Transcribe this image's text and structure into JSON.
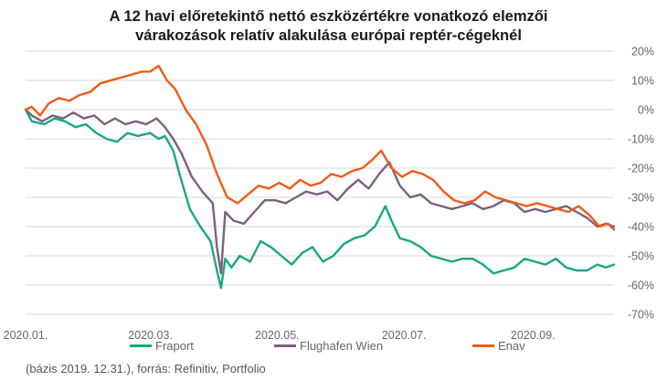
{
  "title_line1": "A 12 havi előretekintő nettó eszközértékre vonatkozó elemzői",
  "title_line2": "várakozások relatív alakulása európai reptér-cégeknél",
  "note": "(bázis 2019.  12.31.), forrás: Refinitiv, Portfolio",
  "colors": {
    "Fraport": "#1aa87e",
    "Flughafen Wien": "#7b617f",
    "Enav": "#ef5b17",
    "grid": "#d7d7d7"
  },
  "chart_data": {
    "type": "line",
    "title": "A 12 havi előretekintő nettó eszközértékre vonatkozó elemzői várakozások relatív alakulása európai reptér-cégeknél",
    "xlabel": "",
    "ylabel": "",
    "x_ticks": [
      "2020.01.",
      "2020.03.",
      "2020.05.",
      "2020.07.",
      "2020.09."
    ],
    "x_range": [
      "2020.01.01",
      "2020.10.10"
    ],
    "y_ticks": [
      "20%",
      "10%",
      "0%",
      "-10%",
      "-20%",
      "-30%",
      "-40%",
      "-50%",
      "-60%",
      "-70%"
    ],
    "ylim": [
      -70,
      20
    ],
    "y_axis_side": "right",
    "grid": true,
    "legend_position": "bottom",
    "series": [
      {
        "name": "Fraport",
        "color": "#1aa87e",
        "points": [
          [
            "2020.01.01",
            0
          ],
          [
            "2020.01.04",
            -4
          ],
          [
            "2020.01.10",
            -5
          ],
          [
            "2020.01.15",
            -3
          ],
          [
            "2020.01.20",
            -4
          ],
          [
            "2020.01.25",
            -6
          ],
          [
            "2020.01.30",
            -5
          ],
          [
            "2020.02.04",
            -8
          ],
          [
            "2020.02.09",
            -10
          ],
          [
            "2020.02.14",
            -11
          ],
          [
            "2020.02.19",
            -8
          ],
          [
            "2020.02.24",
            -9
          ],
          [
            "2020.03.01",
            -8
          ],
          [
            "2020.03.05",
            -10
          ],
          [
            "2020.03.08",
            -9
          ],
          [
            "2020.03.12",
            -14
          ],
          [
            "2020.03.15",
            -22
          ],
          [
            "2020.03.20",
            -34
          ],
          [
            "2020.03.25",
            -40
          ],
          [
            "2020.03.30",
            -45
          ],
          [
            "2020.04.02",
            -55
          ],
          [
            "2020.04.04",
            -61
          ],
          [
            "2020.04.06",
            -51
          ],
          [
            "2020.04.09",
            -54
          ],
          [
            "2020.04.13",
            -50
          ],
          [
            "2020.04.18",
            -52
          ],
          [
            "2020.04.23",
            -45
          ],
          [
            "2020.04.28",
            -47
          ],
          [
            "2020.05.03",
            -50
          ],
          [
            "2020.05.08",
            -53
          ],
          [
            "2020.05.13",
            -49
          ],
          [
            "2020.05.18",
            -47
          ],
          [
            "2020.05.23",
            -52
          ],
          [
            "2020.05.28",
            -50
          ],
          [
            "2020.06.02",
            -46
          ],
          [
            "2020.06.07",
            -44
          ],
          [
            "2020.06.12",
            -43
          ],
          [
            "2020.06.17",
            -40
          ],
          [
            "2020.06.22",
            -33
          ],
          [
            "2020.06.25",
            -38
          ],
          [
            "2020.06.29",
            -44
          ],
          [
            "2020.07.04",
            -45
          ],
          [
            "2020.07.09",
            -47
          ],
          [
            "2020.07.14",
            -50
          ],
          [
            "2020.07.19",
            -51
          ],
          [
            "2020.07.24",
            -52
          ],
          [
            "2020.07.29",
            -51
          ],
          [
            "2020.08.03",
            -51
          ],
          [
            "2020.08.08",
            -53
          ],
          [
            "2020.08.13",
            -56
          ],
          [
            "2020.08.18",
            -55
          ],
          [
            "2020.08.23",
            -54
          ],
          [
            "2020.08.28",
            -51
          ],
          [
            "2020.09.02",
            -52
          ],
          [
            "2020.09.07",
            -53
          ],
          [
            "2020.09.12",
            -51
          ],
          [
            "2020.09.17",
            -54
          ],
          [
            "2020.09.22",
            -55
          ],
          [
            "2020.09.27",
            -55
          ],
          [
            "2020.10.02",
            -53
          ],
          [
            "2020.10.06",
            -54
          ],
          [
            "2020.10.10",
            -53
          ]
        ]
      },
      {
        "name": "Flughafen Wien",
        "color": "#7b617f",
        "points": [
          [
            "2020.01.01",
            0
          ],
          [
            "2020.01.04",
            -2
          ],
          [
            "2020.01.09",
            -4
          ],
          [
            "2020.01.14",
            -2
          ],
          [
            "2020.01.19",
            -3
          ],
          [
            "2020.01.24",
            -1
          ],
          [
            "2020.01.29",
            -3
          ],
          [
            "2020.02.03",
            -2
          ],
          [
            "2020.02.08",
            -5
          ],
          [
            "2020.02.13",
            -3
          ],
          [
            "2020.02.18",
            -5
          ],
          [
            "2020.02.23",
            -4
          ],
          [
            "2020.02.28",
            -5
          ],
          [
            "2020.03.04",
            -3
          ],
          [
            "2020.03.08",
            -6
          ],
          [
            "2020.03.12",
            -10
          ],
          [
            "2020.03.16",
            -15
          ],
          [
            "2020.03.21",
            -23
          ],
          [
            "2020.03.26",
            -28
          ],
          [
            "2020.03.31",
            -32
          ],
          [
            "2020.04.02",
            -47
          ],
          [
            "2020.04.04",
            -56
          ],
          [
            "2020.04.06",
            -35
          ],
          [
            "2020.04.10",
            -38
          ],
          [
            "2020.04.15",
            -39
          ],
          [
            "2020.04.20",
            -35
          ],
          [
            "2020.04.25",
            -31
          ],
          [
            "2020.04.30",
            -31
          ],
          [
            "2020.05.05",
            -32
          ],
          [
            "2020.05.10",
            -30
          ],
          [
            "2020.05.15",
            -28
          ],
          [
            "2020.05.20",
            -29
          ],
          [
            "2020.05.25",
            -28
          ],
          [
            "2020.05.30",
            -31
          ],
          [
            "2020.06.04",
            -27
          ],
          [
            "2020.06.09",
            -24
          ],
          [
            "2020.06.14",
            -27
          ],
          [
            "2020.06.19",
            -22
          ],
          [
            "2020.06.24",
            -18
          ],
          [
            "2020.06.29",
            -26
          ],
          [
            "2020.07.04",
            -30
          ],
          [
            "2020.07.09",
            -29
          ],
          [
            "2020.07.14",
            -32
          ],
          [
            "2020.07.19",
            -33
          ],
          [
            "2020.07.24",
            -34
          ],
          [
            "2020.07.29",
            -33
          ],
          [
            "2020.08.03",
            -32
          ],
          [
            "2020.08.08",
            -34
          ],
          [
            "2020.08.13",
            -33
          ],
          [
            "2020.08.18",
            -31
          ],
          [
            "2020.08.23",
            -32
          ],
          [
            "2020.08.28",
            -35
          ],
          [
            "2020.09.02",
            -34
          ],
          [
            "2020.09.07",
            -35
          ],
          [
            "2020.09.12",
            -34
          ],
          [
            "2020.09.17",
            -33
          ],
          [
            "2020.09.22",
            -35
          ],
          [
            "2020.09.27",
            -37
          ],
          [
            "2020.10.02",
            -40
          ],
          [
            "2020.10.06",
            -39
          ],
          [
            "2020.10.10",
            -40
          ]
        ]
      },
      {
        "name": "Enav",
        "color": "#ef5b17",
        "points": [
          [
            "2020.01.01",
            0
          ],
          [
            "2020.01.04",
            1
          ],
          [
            "2020.01.08",
            -2
          ],
          [
            "2020.01.12",
            2
          ],
          [
            "2020.01.17",
            4
          ],
          [
            "2020.01.22",
            3
          ],
          [
            "2020.01.27",
            5
          ],
          [
            "2020.02.01",
            6
          ],
          [
            "2020.02.06",
            9
          ],
          [
            "2020.02.11",
            10
          ],
          [
            "2020.02.16",
            11
          ],
          [
            "2020.02.21",
            12
          ],
          [
            "2020.02.26",
            13
          ],
          [
            "2020.03.01",
            13
          ],
          [
            "2020.03.05",
            15
          ],
          [
            "2020.03.09",
            10
          ],
          [
            "2020.03.13",
            7
          ],
          [
            "2020.03.18",
            0
          ],
          [
            "2020.03.23",
            -5
          ],
          [
            "2020.03.28",
            -12
          ],
          [
            "2020.04.02",
            -22
          ],
          [
            "2020.04.07",
            -30
          ],
          [
            "2020.04.12",
            -32
          ],
          [
            "2020.04.17",
            -29
          ],
          [
            "2020.04.22",
            -26
          ],
          [
            "2020.04.27",
            -27
          ],
          [
            "2020.05.02",
            -25
          ],
          [
            "2020.05.07",
            -27
          ],
          [
            "2020.05.12",
            -24
          ],
          [
            "2020.05.17",
            -26
          ],
          [
            "2020.05.22",
            -25
          ],
          [
            "2020.05.27",
            -22
          ],
          [
            "2020.06.01",
            -23
          ],
          [
            "2020.06.06",
            -21
          ],
          [
            "2020.06.11",
            -20
          ],
          [
            "2020.06.16",
            -17
          ],
          [
            "2020.06.20",
            -14
          ],
          [
            "2020.06.25",
            -20
          ],
          [
            "2020.06.30",
            -23
          ],
          [
            "2020.07.05",
            -21
          ],
          [
            "2020.07.10",
            -22
          ],
          [
            "2020.07.15",
            -24
          ],
          [
            "2020.07.20",
            -28
          ],
          [
            "2020.07.25",
            -31
          ],
          [
            "2020.07.30",
            -32
          ],
          [
            "2020.08.04",
            -31
          ],
          [
            "2020.08.09",
            -28
          ],
          [
            "2020.08.14",
            -30
          ],
          [
            "2020.08.19",
            -31
          ],
          [
            "2020.08.24",
            -32
          ],
          [
            "2020.08.29",
            -33
          ],
          [
            "2020.09.03",
            -32
          ],
          [
            "2020.09.08",
            -33
          ],
          [
            "2020.09.13",
            -34
          ],
          [
            "2020.09.18",
            -35
          ],
          [
            "2020.09.23",
            -33
          ],
          [
            "2020.09.28",
            -36
          ],
          [
            "2020.10.03",
            -40
          ],
          [
            "2020.10.07",
            -39
          ],
          [
            "2020.10.10",
            -41
          ]
        ]
      }
    ]
  }
}
